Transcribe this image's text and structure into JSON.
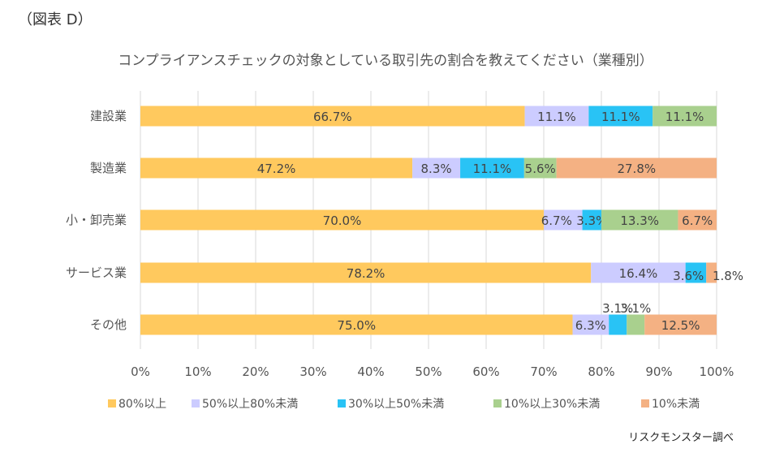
{
  "figure_label": "（図表 D）",
  "source_note": "リスクモンスター調べ",
  "colors": {
    "s1": "#FFC95E",
    "s2": "#CCCCFF",
    "s3": "#29C3F5",
    "s4": "#A9D08E",
    "s5": "#F4B183"
  },
  "chart_data": {
    "type": "bar",
    "orientation": "horizontal",
    "stacked": "percent",
    "title": "コンプライアンスチェックの対象としている取引先の割合を教えてください（業種別）",
    "categories": [
      "建設業",
      "製造業",
      "小・卸売業",
      "サービス業",
      "その他"
    ],
    "series": [
      {
        "name": "80%以上",
        "values": [
          66.7,
          47.2,
          70.0,
          78.2,
          75.0
        ],
        "labels": [
          "66.7%",
          "47.2%",
          "70.0%",
          "78.2%",
          "75.0%"
        ]
      },
      {
        "name": "50%以上80%未満",
        "values": [
          11.1,
          8.3,
          6.7,
          16.4,
          6.3
        ],
        "labels": [
          "11.1%",
          "8.3%",
          "6.7%",
          "16.4%",
          "6.3%"
        ]
      },
      {
        "name": "30%以上50%未満",
        "values": [
          11.1,
          11.1,
          3.3,
          3.6,
          3.1
        ],
        "labels": [
          "11.1%",
          "11.1%",
          "3.3%",
          "3.6%",
          "3.1%"
        ]
      },
      {
        "name": "10%以上30%未満",
        "values": [
          11.1,
          5.6,
          13.3,
          0.0,
          3.1
        ],
        "labels": [
          "11.1%",
          "5.6%",
          "13.3%",
          "",
          "3.1%"
        ]
      },
      {
        "name": "10%未満",
        "values": [
          0.0,
          27.8,
          6.7,
          1.8,
          12.5
        ],
        "labels": [
          "",
          "27.8%",
          "6.7%",
          "1.8%",
          "12.5%"
        ]
      }
    ],
    "x_ticks": [
      "0%",
      "10%",
      "20%",
      "30%",
      "40%",
      "50%",
      "60%",
      "70%",
      "80%",
      "90%",
      "100%"
    ],
    "xlim": [
      0,
      100
    ],
    "grid": true,
    "legend_position": "bottom"
  }
}
